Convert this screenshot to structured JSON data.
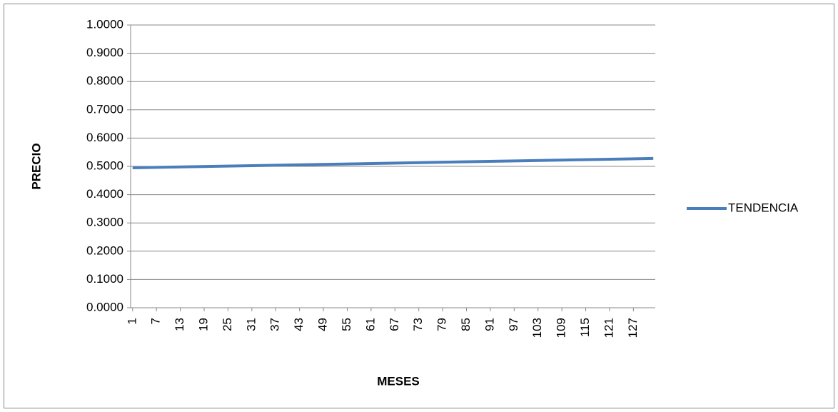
{
  "chart_data": {
    "type": "line",
    "x_label": "MESES",
    "y_label": "PRECIO",
    "x": [
      1,
      132
    ],
    "series": [
      {
        "name": "TENDENCIA",
        "color": "#4a7ebb",
        "values": [
          0.495,
          0.528
        ]
      }
    ],
    "xlim": [
      0.5,
      132.5
    ],
    "xticks": [
      1,
      7,
      13,
      19,
      25,
      31,
      37,
      43,
      49,
      55,
      61,
      67,
      73,
      79,
      85,
      91,
      97,
      103,
      109,
      115,
      121,
      127
    ],
    "ylim": [
      0,
      1
    ],
    "yticks": [
      {
        "value": 0,
        "label": "0.0000"
      },
      {
        "value": 0.1,
        "label": "0.1000"
      },
      {
        "value": 0.2,
        "label": "0.2000"
      },
      {
        "value": 0.3,
        "label": "0.3000"
      },
      {
        "value": 0.4,
        "label": "0.4000"
      },
      {
        "value": 0.5,
        "label": "0.5000"
      },
      {
        "value": 0.6,
        "label": "0.6000"
      },
      {
        "value": 0.7,
        "label": "0.7000"
      },
      {
        "value": 0.8,
        "label": "0.8000"
      },
      {
        "value": 0.9,
        "label": "0.9000"
      },
      {
        "value": 1,
        "label": "1.0000"
      }
    ],
    "grid": true,
    "legend": "right"
  }
}
